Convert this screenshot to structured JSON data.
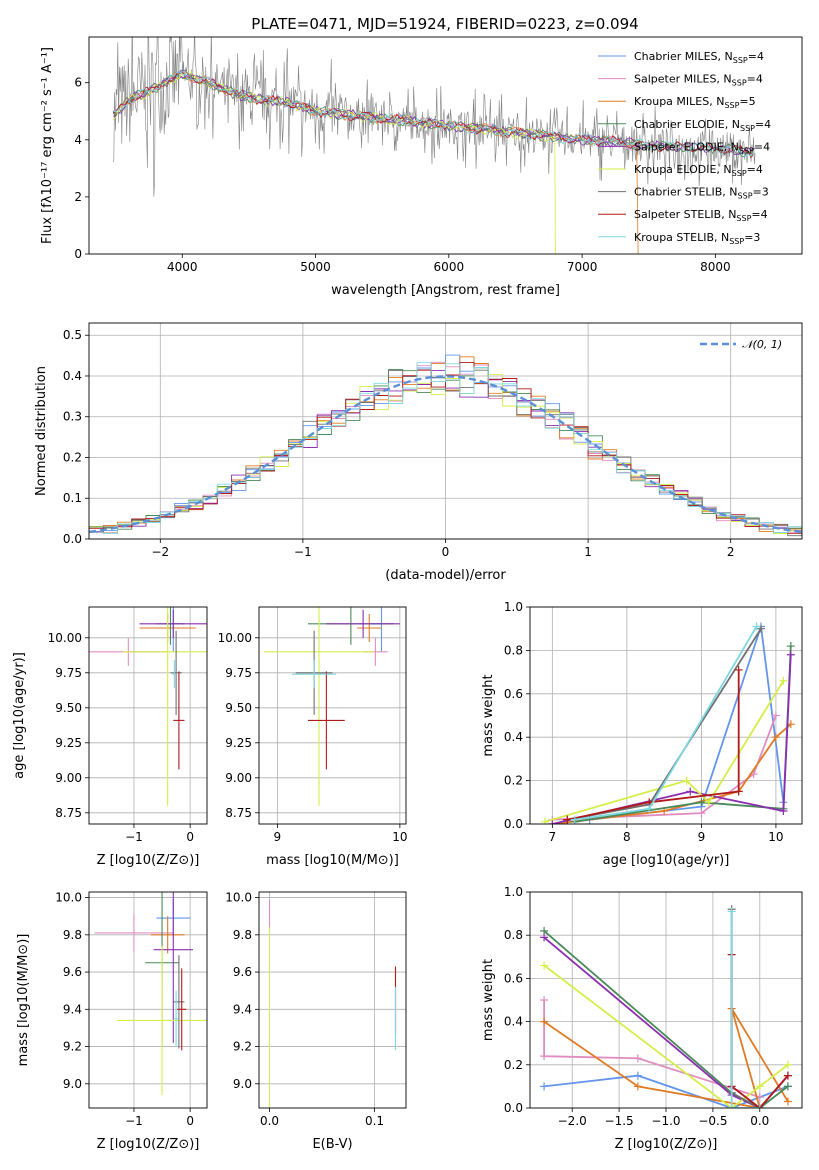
{
  "title": "PLATE=0471, MJD=51924, FIBERID=0223, z=0.094",
  "models": [
    {
      "label": "Chabrier MILES, N",
      "sub": "SSP",
      "n": "=4",
      "color": "#6495ed"
    },
    {
      "label": "Salpeter MILES, N",
      "sub": "SSP",
      "n": "=4",
      "color": "#e08cc0"
    },
    {
      "label": "Kroupa MILES, N",
      "sub": "SSP",
      "n": "=5",
      "color": "#e07b25"
    },
    {
      "label": "Chabrier ELODIE, N",
      "sub": "SSP",
      "n": "=4",
      "color": "#4a8a5a"
    },
    {
      "label": "Salpeter ELODIE, N",
      "sub": "SSP",
      "n": "=4",
      "color": "#8b2fb0"
    },
    {
      "label": "Kroupa ELODIE, N",
      "sub": "SSP",
      "n": "=4",
      "color": "#d4ee4a"
    },
    {
      "label": "Chabrier STELIB, N",
      "sub": "SSP",
      "n": "=3",
      "color": "#707070"
    },
    {
      "label": "Salpeter STELIB, N",
      "sub": "SSP",
      "n": "=4",
      "color": "#b01a1a"
    },
    {
      "label": "Kroupa STELIB, N",
      "sub": "SSP",
      "n": "=3",
      "color": "#7fd8e0"
    }
  ],
  "chart_data": [
    {
      "type": "line",
      "title": "PLATE=0471, MJD=51924, FIBERID=0223, z=0.094",
      "xlabel": "wavelength [Angstrom, rest frame]",
      "ylabel": "Flux [fλ10⁻¹⁷ erg cm⁻² s⁻¹ A⁻¹]",
      "xlim": [
        3300,
        8650
      ],
      "ylim": [
        0,
        7.6
      ],
      "xticks": [
        4000,
        5000,
        6000,
        7000,
        8000
      ],
      "yticks": [
        0,
        2,
        4,
        6
      ],
      "x": [
        3500,
        3600,
        3700,
        3800,
        3900,
        4000,
        4200,
        4400,
        4600,
        4800,
        5000,
        5200,
        5400,
        5600,
        5800,
        6000,
        6200,
        6400,
        6600,
        6800,
        7000,
        7200,
        7400,
        7600,
        7800,
        8000,
        8200,
        8300
      ],
      "model_flux": [
        4.9,
        5.4,
        5.6,
        5.8,
        6.1,
        6.3,
        6.0,
        5.6,
        5.4,
        5.3,
        5.0,
        4.9,
        4.8,
        4.7,
        4.6,
        4.5,
        4.4,
        4.3,
        4.2,
        4.1,
        4.0,
        3.95,
        3.85,
        3.8,
        3.75,
        3.7,
        3.6,
        3.55
      ],
      "legend": "upper right",
      "grid": false
    },
    {
      "type": "line",
      "xlabel": "(data-model)/error",
      "ylabel": "Normed distribution",
      "xlim": [
        -2.5,
        2.5
      ],
      "ylim": [
        0,
        0.53
      ],
      "xticks": [
        -2,
        -1,
        0,
        1,
        2
      ],
      "yticks": [
        0.0,
        0.1,
        0.2,
        0.3,
        0.4,
        0.5
      ],
      "series": [
        {
          "name": "𝒩(0, 1)",
          "function": "standard normal pdf"
        }
      ],
      "histogram_bin_width": 0.1,
      "legend": "upper right",
      "grid": true
    },
    {
      "type": "scatter",
      "xlabel": "Z [log10(Z/Z⊙)]",
      "ylabel": "age  [log10(age/yr)]",
      "xlim": [
        -1.8,
        0.3
      ],
      "ylim": [
        8.67,
        10.22
      ],
      "xticks": [
        -1,
        0
      ],
      "yticks": [
        8.75,
        9.0,
        9.25,
        9.5,
        9.75,
        10.0
      ],
      "points": [
        {
          "model": 0,
          "x": -0.3,
          "y": 10.1,
          "xerr": 0.15,
          "yerr": 0.2
        },
        {
          "model": 1,
          "x": -1.1,
          "y": 9.9,
          "xerr": 0.7,
          "yerr": 0.1
        },
        {
          "model": 2,
          "x": -0.4,
          "y": 10.07,
          "xerr": 0.5,
          "yerr": 0.1
        },
        {
          "model": 3,
          "x": -0.35,
          "y": 10.1,
          "xerr": 0.25,
          "yerr": 0.15
        },
        {
          "model": 4,
          "x": -0.3,
          "y": 10.1,
          "xerr": 0.6,
          "yerr": 0.1
        },
        {
          "model": 5,
          "x": -0.4,
          "y": 9.9,
          "xerr": 0.8,
          "yerr": 1.1
        },
        {
          "model": 6,
          "x": -0.25,
          "y": 9.75,
          "xerr": 0.1,
          "yerr": 0.3
        },
        {
          "model": 7,
          "x": -0.2,
          "y": 9.41,
          "xerr": 0.1,
          "yerr": 0.35
        },
        {
          "model": 8,
          "x": -0.28,
          "y": 9.74,
          "xerr": 0.03,
          "yerr": 0.1
        }
      ]
    },
    {
      "type": "scatter",
      "xlabel": "mass [log10(M/M⊙)]",
      "xlim": [
        8.85,
        10.05
      ],
      "ylim": [
        8.67,
        10.22
      ],
      "xticks": [
        9,
        10
      ],
      "yticks": [
        8.75,
        9.0,
        9.25,
        9.5,
        9.75,
        10.0
      ],
      "points": [
        {
          "model": 0,
          "x": 9.85,
          "y": 10.1,
          "xerr": 0.1,
          "yerr": 0.2
        },
        {
          "model": 1,
          "x": 9.8,
          "y": 9.9,
          "xerr": 0.1,
          "yerr": 0.1
        },
        {
          "model": 2,
          "x": 9.75,
          "y": 10.07,
          "xerr": 0.1,
          "yerr": 0.1
        },
        {
          "model": 3,
          "x": 9.6,
          "y": 10.1,
          "xerr": 0.35,
          "yerr": 0.15
        },
        {
          "model": 4,
          "x": 9.7,
          "y": 10.1,
          "xerr": 0.3,
          "yerr": 0.1
        },
        {
          "model": 5,
          "x": 9.34,
          "y": 9.9,
          "xerr": 0.45,
          "yerr": 1.1
        },
        {
          "model": 6,
          "x": 9.3,
          "y": 9.75,
          "xerr": 0.15,
          "yerr": 0.3
        },
        {
          "model": 7,
          "x": 9.4,
          "y": 9.41,
          "xerr": 0.15,
          "yerr": 0.35
        },
        {
          "model": 8,
          "x": 9.3,
          "y": 9.74,
          "xerr": 0.18,
          "yerr": 0.1
        }
      ]
    },
    {
      "type": "line",
      "xlabel": "age  [log10(age/yr)]",
      "ylabel": "mass weight",
      "xlim": [
        6.7,
        10.35
      ],
      "ylim": [
        0,
        1.0
      ],
      "xticks": [
        7,
        8,
        9,
        10
      ],
      "yticks": [
        0.0,
        0.2,
        0.4,
        0.6,
        0.8,
        1.0
      ],
      "grid": true,
      "series": [
        {
          "model": 0,
          "x": [
            7.5,
            9.0,
            9.8,
            10.1
          ],
          "y": [
            0.02,
            0.08,
            0.91,
            0.1
          ]
        },
        {
          "model": 1,
          "x": [
            7.0,
            9.0,
            9.7,
            10.0
          ],
          "y": [
            0.02,
            0.05,
            0.23,
            0.5
          ]
        },
        {
          "model": 2,
          "x": [
            7.0,
            8.5,
            9.5,
            10.0,
            10.2
          ],
          "y": [
            0.0,
            0.06,
            0.15,
            0.4,
            0.46
          ]
        },
        {
          "model": 3,
          "x": [
            7.3,
            9.0,
            10.1,
            10.2
          ],
          "y": [
            0.01,
            0.1,
            0.07,
            0.82
          ]
        },
        {
          "model": 4,
          "x": [
            7.0,
            8.85,
            10.1,
            10.2
          ],
          "y": [
            0.0,
            0.15,
            0.06,
            0.78
          ]
        },
        {
          "model": 5,
          "x": [
            6.9,
            8.8,
            9.1,
            10.1
          ],
          "y": [
            0.01,
            0.2,
            0.1,
            0.66
          ]
        },
        {
          "model": 6,
          "x": [
            7.2,
            8.3,
            9.8
          ],
          "y": [
            0.02,
            0.09,
            0.9
          ]
        },
        {
          "model": 7,
          "x": [
            7.2,
            8.3,
            9.5,
            9.5
          ],
          "y": [
            0.02,
            0.1,
            0.15,
            0.71
          ]
        },
        {
          "model": 8,
          "x": [
            7.3,
            8.3,
            9.74
          ],
          "y": [
            0.02,
            0.07,
            0.91
          ]
        }
      ]
    },
    {
      "type": "scatter",
      "xlabel": "Z [log10(Z/Z⊙)]",
      "ylabel": "mass [log10(M/M⊙)]",
      "xlim": [
        -1.8,
        0.3
      ],
      "ylim": [
        8.87,
        10.03
      ],
      "xticks": [
        -1,
        0
      ],
      "yticks": [
        9.0,
        9.2,
        9.4,
        9.6,
        9.8,
        10.0
      ],
      "points": [
        {
          "model": 0,
          "x": -0.3,
          "y": 9.89,
          "xerr": 0.3,
          "yerr": 0.1
        },
        {
          "model": 1,
          "x": -1.0,
          "y": 9.81,
          "xerr": 0.7,
          "yerr": 0.1
        },
        {
          "model": 2,
          "x": -0.4,
          "y": 9.8,
          "xerr": 0.3,
          "yerr": 0.1
        },
        {
          "model": 3,
          "x": -0.5,
          "y": 9.65,
          "xerr": 0.3,
          "yerr": 0.45
        },
        {
          "model": 4,
          "x": -0.3,
          "y": 9.72,
          "xerr": 0.35,
          "yerr": 0.5
        },
        {
          "model": 5,
          "x": -0.5,
          "y": 9.34,
          "xerr": 0.8,
          "yerr": 0.4
        },
        {
          "model": 6,
          "x": -0.2,
          "y": 9.44,
          "xerr": 0.1,
          "yerr": 0.25
        },
        {
          "model": 7,
          "x": -0.15,
          "y": 9.4,
          "xerr": 0.08,
          "yerr": 0.22
        },
        {
          "model": 8,
          "x": -0.25,
          "y": 9.35,
          "xerr": 0.03,
          "yerr": 0.15
        }
      ]
    },
    {
      "type": "scatter",
      "xlabel": "E(B-V)",
      "xlim": [
        -0.01,
        0.13
      ],
      "ylim": [
        8.87,
        10.03
      ],
      "xticks": [
        0.0,
        0.1
      ],
      "yticks": [
        9.0,
        9.2,
        9.4,
        9.6,
        9.8,
        10.0
      ],
      "points": [
        {
          "model": 1,
          "x": 0.0,
          "y": 9.89,
          "yerr": 0.1
        },
        {
          "model": 5,
          "x": 0.0,
          "y": 9.34,
          "yerr": 0.5
        },
        {
          "model": 7,
          "x": 0.12,
          "y": 9.45,
          "yerr": 0.18
        },
        {
          "model": 8,
          "x": 0.12,
          "y": 9.35,
          "yerr": 0.17
        }
      ]
    },
    {
      "type": "line",
      "xlabel": "Z [log10(Z/Z⊙)]",
      "ylabel": "mass weight",
      "xlim": [
        -2.45,
        0.45
      ],
      "ylim": [
        0,
        1.0
      ],
      "xticks": [
        -2.0,
        -1.5,
        -1.0,
        -0.5,
        0.0
      ],
      "yticks": [
        0.0,
        0.2,
        0.4,
        0.6,
        0.8,
        1.0
      ],
      "grid": true,
      "series": [
        {
          "model": 0,
          "x": [
            -2.3,
            -1.3,
            -0.3,
            0.3
          ],
          "y": [
            0.1,
            0.15,
            0.0,
            0.1
          ]
        },
        {
          "model": 1,
          "x": [
            -2.3,
            -2.3,
            -1.3,
            0.0
          ],
          "y": [
            0.5,
            0.24,
            0.23,
            0.05
          ]
        },
        {
          "model": 2,
          "x": [
            -2.3,
            -1.3,
            0.0,
            -0.3,
            0.3
          ],
          "y": [
            0.4,
            0.1,
            0.0,
            0.46,
            0.03
          ]
        },
        {
          "model": 3,
          "x": [
            -2.3,
            -0.3,
            0.0,
            0.3
          ],
          "y": [
            0.82,
            0.07,
            0.0,
            0.1
          ]
        },
        {
          "model": 4,
          "x": [
            -2.3,
            -0.3,
            0.0,
            0.3
          ],
          "y": [
            0.79,
            0.06,
            0.0,
            0.15
          ]
        },
        {
          "model": 5,
          "x": [
            -2.3,
            -0.3,
            0.0,
            0.3
          ],
          "y": [
            0.66,
            0.0,
            0.1,
            0.2
          ]
        },
        {
          "model": 6,
          "x": [
            -0.3,
            -0.3,
            0.0
          ],
          "y": [
            0.92,
            0.07,
            0.0
          ]
        },
        {
          "model": 7,
          "x": [
            -0.3,
            -0.3,
            0.0,
            0.3
          ],
          "y": [
            0.71,
            0.1,
            0.0,
            0.15
          ]
        },
        {
          "model": 8,
          "x": [
            -0.3,
            -0.3,
            0.0
          ],
          "y": [
            0.91,
            0.0,
            0.0
          ]
        }
      ]
    }
  ]
}
